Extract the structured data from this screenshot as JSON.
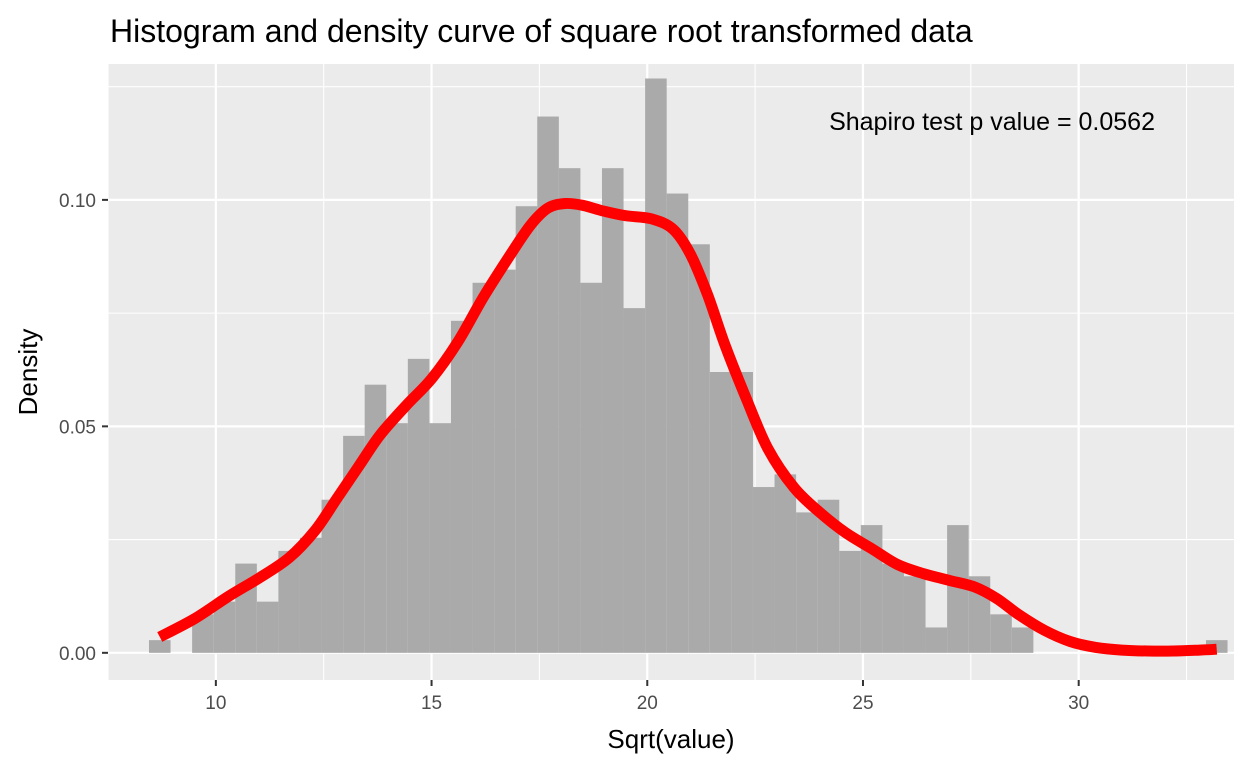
{
  "chart_data": {
    "type": "bar",
    "title": "Histogram and density curve of square root transformed data",
    "xlabel": "Sqrt(value)",
    "ylabel": "Density",
    "xlim": [
      7.5,
      33.6
    ],
    "ylim": [
      -0.006,
      0.13
    ],
    "x_ticks": [
      10,
      15,
      20,
      25,
      30
    ],
    "x_tick_labels": [
      "10",
      "15",
      "20",
      "25",
      "30"
    ],
    "y_ticks": [
      0.0,
      0.05,
      0.1
    ],
    "y_tick_labels": [
      "0.00",
      "0.05",
      "0.10"
    ],
    "grid": true,
    "background": "#ebebeb",
    "annotation": "Shapiro test p value = 0.0562",
    "histogram": {
      "color": "#aaaaaa",
      "bin_width": 0.5,
      "bin_centers": [
        8.7,
        9.2,
        9.7,
        10.2,
        10.7,
        11.2,
        11.7,
        12.2,
        12.7,
        13.2,
        13.7,
        14.2,
        14.7,
        15.2,
        15.7,
        16.2,
        16.7,
        17.2,
        17.7,
        18.2,
        18.7,
        19.2,
        19.7,
        20.2,
        20.7,
        21.2,
        21.7,
        22.2,
        22.7,
        23.2,
        23.7,
        24.2,
        24.7,
        25.2,
        25.7,
        26.2,
        26.7,
        27.2,
        27.7,
        28.2,
        28.7,
        29.2,
        29.7,
        30.2,
        30.7,
        31.2,
        31.7,
        32.2,
        32.7,
        33.2
      ],
      "densities": [
        0.0028,
        0.0,
        0.0085,
        0.0113,
        0.0197,
        0.0113,
        0.0225,
        0.0254,
        0.0338,
        0.0479,
        0.0592,
        0.0507,
        0.0649,
        0.0507,
        0.0733,
        0.0817,
        0.0846,
        0.0986,
        0.1184,
        0.107,
        0.0817,
        0.107,
        0.0761,
        0.1268,
        0.1014,
        0.0902,
        0.062,
        0.062,
        0.0366,
        0.0394,
        0.031,
        0.0338,
        0.0225,
        0.0282,
        0.0197,
        0.0169,
        0.0056,
        0.0282,
        0.0169,
        0.0085,
        0.0056,
        0.0,
        0.0,
        0.0,
        0.0,
        0.0,
        0.0,
        0.0,
        0.0,
        0.0028
      ]
    },
    "density_curve": {
      "color": "#ff0000",
      "x": [
        8.7,
        9.5,
        10.3,
        11.0,
        11.7,
        12.3,
        12.8,
        13.3,
        13.8,
        14.4,
        15.0,
        15.6,
        16.2,
        16.8,
        17.3,
        17.7,
        18.1,
        18.5,
        19.0,
        19.5,
        20.1,
        20.6,
        21.0,
        21.4,
        21.8,
        22.3,
        22.8,
        23.4,
        24.0,
        24.6,
        25.2,
        25.8,
        26.4,
        27.0,
        27.6,
        28.1,
        28.6,
        29.2,
        29.8,
        30.4,
        31.0,
        31.6,
        32.2,
        32.8,
        33.2
      ],
      "y": [
        0.0035,
        0.0075,
        0.0125,
        0.0165,
        0.021,
        0.027,
        0.034,
        0.041,
        0.048,
        0.0545,
        0.0605,
        0.0685,
        0.0785,
        0.0875,
        0.0945,
        0.0982,
        0.0992,
        0.0988,
        0.0975,
        0.0965,
        0.0958,
        0.0935,
        0.088,
        0.079,
        0.068,
        0.056,
        0.045,
        0.0365,
        0.031,
        0.0265,
        0.023,
        0.0195,
        0.0175,
        0.016,
        0.0145,
        0.012,
        0.0085,
        0.005,
        0.0025,
        0.0012,
        0.0006,
        0.0004,
        0.0004,
        0.0006,
        0.0008
      ]
    }
  }
}
